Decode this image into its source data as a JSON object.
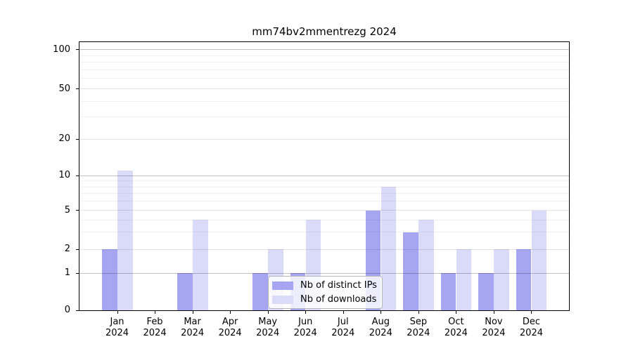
{
  "figure": {
    "background": "#ffffff"
  },
  "chart_data": {
    "type": "bar",
    "title": "mm74bv2mmentrezg 2024",
    "xlabel": "",
    "ylabel": "",
    "categories": [
      "Jan 2024",
      "Feb 2024",
      "Mar 2024",
      "Apr 2024",
      "May 2024",
      "Jun 2024",
      "Jul 2024",
      "Aug 2024",
      "Sep 2024",
      "Oct 2024",
      "Nov 2024",
      "Dec 2024"
    ],
    "series": [
      {
        "name": "Nb of distinct IPs",
        "color": "#a5a5f2",
        "values": [
          2,
          0,
          1,
          0,
          1,
          1,
          0,
          5,
          3,
          1,
          1,
          2
        ]
      },
      {
        "name": "Nb of downloads",
        "color": "#dadaf9",
        "values": [
          11,
          0,
          4,
          0,
          2,
          4,
          0,
          8,
          4,
          2,
          2,
          5
        ]
      }
    ],
    "y_ticks": [
      0,
      1,
      2,
      5,
      10,
      20,
      50,
      100
    ],
    "y_minor_gridlines": [
      3,
      4,
      6,
      7,
      8,
      9,
      30,
      40,
      60,
      70,
      80,
      90
    ],
    "y_scale": "symlog",
    "ylim": [
      0,
      115
    ],
    "grid": true,
    "legend_position": "lower center inside plot",
    "legend_entries": [
      "Nb of distinct IPs",
      "Nb of downloads"
    ]
  }
}
